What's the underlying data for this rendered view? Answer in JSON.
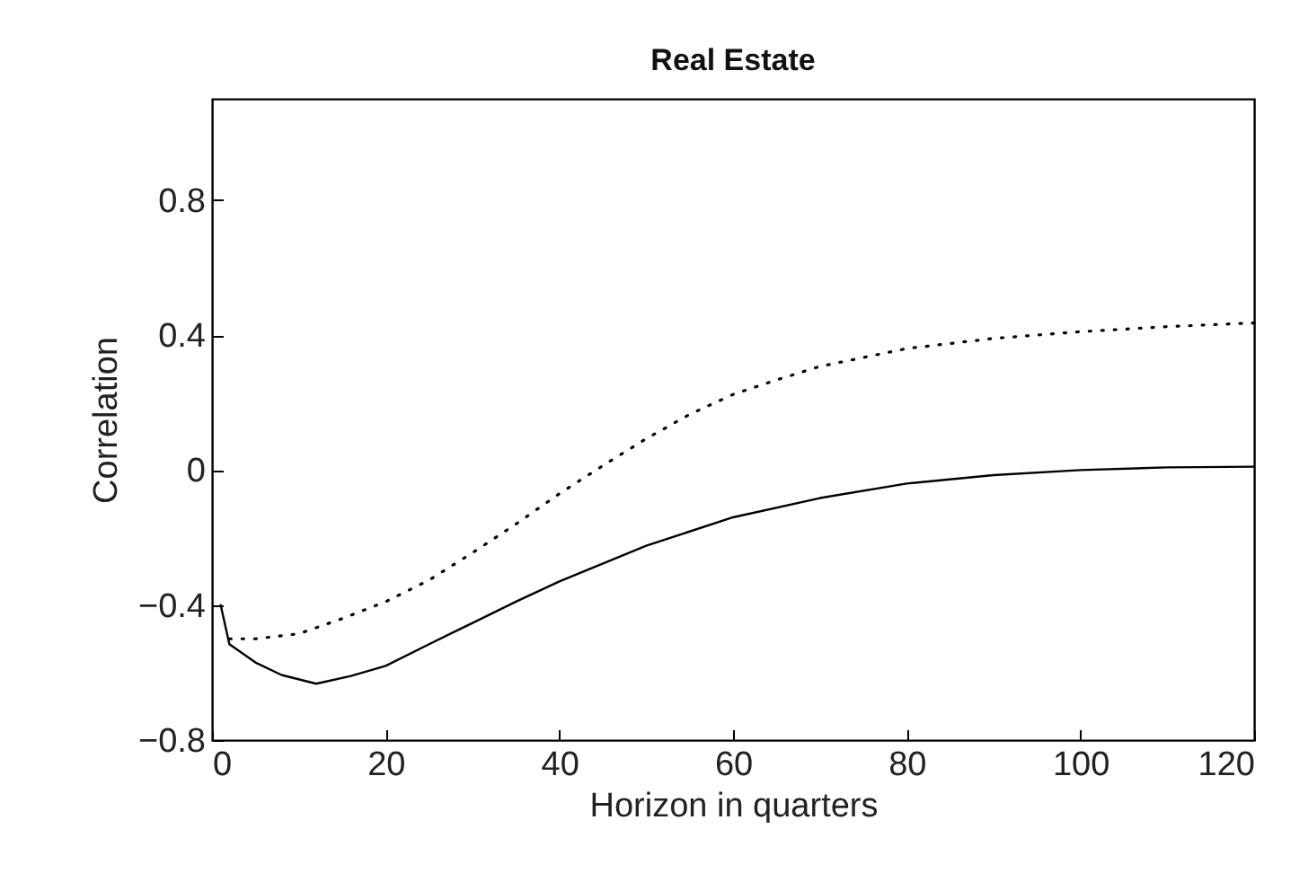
{
  "chart_data": {
    "type": "line",
    "title": "Real Estate",
    "xlabel": "Horizon in quarters",
    "ylabel": "Correlation",
    "xlim": [
      0,
      120
    ],
    "xticks": [
      0,
      20,
      40,
      60,
      80,
      100,
      120
    ],
    "ylim": [
      -0.8,
      1.1
    ],
    "yticks": [
      -0.8,
      -0.4,
      0,
      0.4,
      0.8
    ],
    "series": [
      {
        "color": "#000000",
        "line_style": "solid",
        "x": [
          1,
          2,
          5,
          8,
          12,
          16,
          20,
          25,
          30,
          35,
          40,
          50,
          60,
          70,
          80,
          90,
          100,
          110,
          120
        ],
        "values": [
          -0.4,
          -0.516,
          -0.57,
          -0.607,
          -0.633,
          -0.61,
          -0.58,
          -0.516,
          -0.453,
          -0.39,
          -0.33,
          -0.224,
          -0.14,
          -0.083,
          -0.04,
          -0.015,
          0,
          0.008,
          0.01
        ]
      },
      {
        "color": "#000000",
        "line_style": "dotted",
        "x": [
          2,
          5,
          10,
          15,
          20,
          25,
          30,
          35,
          40,
          45,
          50,
          55,
          60,
          65,
          70,
          80,
          90,
          100,
          110,
          120
        ],
        "values": [
          -0.5,
          -0.5,
          -0.485,
          -0.44,
          -0.39,
          -0.326,
          -0.245,
          -0.16,
          -0.07,
          0.013,
          0.093,
          0.165,
          0.224,
          0.267,
          0.307,
          0.36,
          0.39,
          0.41,
          0.425,
          0.436
        ]
      }
    ]
  }
}
